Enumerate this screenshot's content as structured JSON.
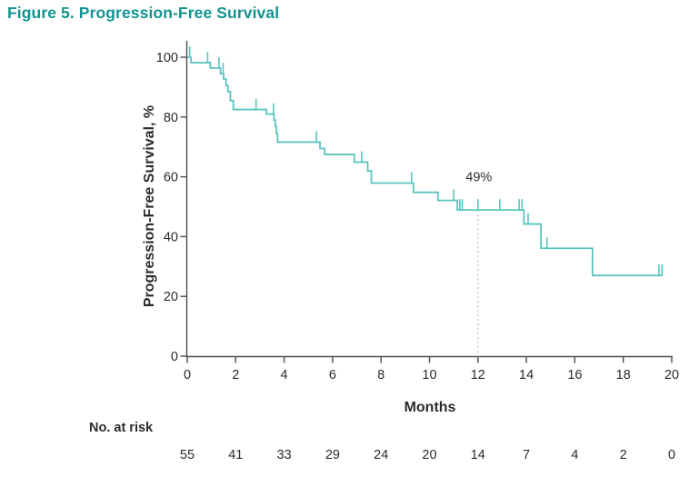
{
  "title": "Figure 5. Progression-Free Survival",
  "colors": {
    "title_teal": "#11948F",
    "curve_teal": "#59C5C1",
    "axis_gray": "#4D4D4D",
    "text_dark": "#2B2B2B",
    "dashed_gray": "#BDBDBD"
  },
  "chart_data": {
    "type": "line",
    "subtype": "kaplan-meier-step",
    "title": "Figure 5. Progression-Free Survival",
    "xlabel": "Months",
    "ylabel": "Progression-Free Survival, %",
    "xlim": [
      0,
      20
    ],
    "ylim": [
      0,
      100
    ],
    "xticks": [
      0,
      2,
      4,
      6,
      8,
      10,
      12,
      14,
      16,
      18,
      20
    ],
    "yticks": [
      0,
      20,
      40,
      60,
      80,
      100
    ],
    "grid": "off",
    "legend": "none",
    "annotation": {
      "text": "49%",
      "x": 12,
      "y": 60
    },
    "dashed_line": {
      "x": 12,
      "from_v": 48.9,
      "to_v": 0
    },
    "km_curve": {
      "start": {
        "t": 0,
        "v": 100
      },
      "steps": [
        [
          0.15,
          98.2
        ],
        [
          0.95,
          96.4
        ],
        [
          1.37,
          94.5
        ],
        [
          1.5,
          92.7
        ],
        [
          1.6,
          90.5
        ],
        [
          1.68,
          88.5
        ],
        [
          1.78,
          85.5
        ],
        [
          1.9,
          82.5
        ],
        [
          3.27,
          81.0
        ],
        [
          3.58,
          79.0
        ],
        [
          3.63,
          77.0
        ],
        [
          3.68,
          74.5
        ],
        [
          3.73,
          71.6
        ],
        [
          5.48,
          69.5
        ],
        [
          5.67,
          67.5
        ],
        [
          6.9,
          64.9
        ],
        [
          7.45,
          62.0
        ],
        [
          7.6,
          57.9
        ],
        [
          9.34,
          54.8
        ],
        [
          10.35,
          52.1
        ],
        [
          11.15,
          48.9
        ],
        [
          13.9,
          44.2
        ],
        [
          14.6,
          36.1
        ],
        [
          16.73,
          27.0
        ]
      ],
      "end_t": 19.62,
      "censor_marks": [
        [
          0.1,
          100
        ],
        [
          0.84,
          98.2
        ],
        [
          1.31,
          96.4
        ],
        [
          1.48,
          94.5
        ],
        [
          2.84,
          82.5
        ],
        [
          3.56,
          81.0
        ],
        [
          5.33,
          71.6
        ],
        [
          7.2,
          64.9
        ],
        [
          9.26,
          57.9
        ],
        [
          11.0,
          52.1
        ],
        [
          11.25,
          48.9
        ],
        [
          11.35,
          48.9
        ],
        [
          12.0,
          48.9
        ],
        [
          12.9,
          48.9
        ],
        [
          13.7,
          48.9
        ],
        [
          13.82,
          48.9
        ],
        [
          14.07,
          44.2
        ],
        [
          14.85,
          36.1
        ],
        [
          19.47,
          27.0
        ],
        [
          19.6,
          27.0
        ]
      ]
    },
    "at_risk": {
      "label": "No. at risk",
      "months": [
        0,
        2,
        4,
        6,
        8,
        10,
        12,
        14,
        16,
        18,
        20
      ],
      "values": [
        55,
        41,
        33,
        29,
        24,
        20,
        14,
        7,
        4,
        2,
        0
      ]
    }
  }
}
